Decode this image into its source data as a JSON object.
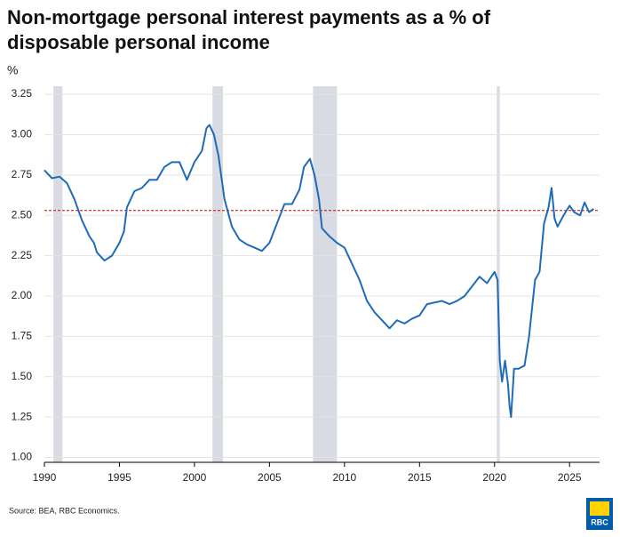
{
  "chart_data": {
    "type": "line",
    "title": "Non-mortgage personal interest payments as a % of disposable personal income",
    "y_unit": "%",
    "source": "Source: BEA, RBC Economics.",
    "logo_text": "RBC",
    "xlim": [
      1990,
      2027
    ],
    "xticks": [
      1990,
      1995,
      2000,
      2005,
      2010,
      2015,
      2020,
      2025
    ],
    "ylim": [
      0.97,
      3.3
    ],
    "yticks": [
      {
        "value": 1,
        "label": "1.00"
      },
      1.25,
      {
        "value": 1.5,
        "label": "1.50"
      },
      1.75,
      {
        "value": 2,
        "label": "2.00"
      },
      2.25,
      {
        "value": 2.5,
        "label": "2.50"
      },
      2.75,
      {
        "value": 3,
        "label": "3.00"
      },
      3.25
    ],
    "grid": true,
    "recessions": [
      [
        1990.6,
        1991.2
      ],
      [
        2001.2,
        2001.9
      ],
      [
        2007.9,
        2009.5
      ],
      [
        2020.15,
        2020.35
      ]
    ],
    "recession_color": "#d9dbe3",
    "reference_line": 2.53,
    "reference_color": "#cc0000",
    "x": [
      1990.0,
      1990.5,
      1991.0,
      1991.5,
      1992.0,
      1992.5,
      1993.0,
      1993.3,
      1993.5,
      1994.0,
      1994.5,
      1995.0,
      1995.3,
      1995.5,
      1996.0,
      1996.5,
      1997.0,
      1997.5,
      1998.0,
      1998.5,
      1999.0,
      1999.5,
      2000.0,
      2000.5,
      2000.8,
      2001.0,
      2001.3,
      2001.6,
      2002.0,
      2002.5,
      2003.0,
      2003.5,
      2004.0,
      2004.5,
      2005.0,
      2005.5,
      2006.0,
      2006.5,
      2007.0,
      2007.3,
      2007.7,
      2008.0,
      2008.3,
      2008.5,
      2009.0,
      2009.5,
      2010.0,
      2010.5,
      2011.0,
      2011.5,
      2012.0,
      2012.5,
      2013.0,
      2013.5,
      2014.0,
      2014.5,
      2015.0,
      2015.5,
      2016.0,
      2016.5,
      2017.0,
      2017.5,
      2018.0,
      2018.5,
      2019.0,
      2019.5,
      2020.0,
      2020.2,
      2020.35,
      2020.5,
      2020.7,
      2020.9,
      2021.0,
      2021.1,
      2021.3,
      2021.6,
      2022.0,
      2022.3,
      2022.7,
      2023.0,
      2023.3,
      2023.6,
      2023.8,
      2024.0,
      2024.2,
      2024.6,
      2025.0,
      2025.3,
      2025.7,
      2026.0,
      2026.3,
      2026.6
    ],
    "series": [
      {
        "name": "Interest payments",
        "color": "#1f6bb8",
        "values": [
          2.78,
          2.73,
          2.74,
          2.7,
          2.6,
          2.47,
          2.37,
          2.33,
          2.27,
          2.22,
          2.25,
          2.33,
          2.4,
          2.55,
          2.65,
          2.67,
          2.72,
          2.72,
          2.8,
          2.83,
          2.83,
          2.72,
          2.83,
          2.9,
          3.04,
          3.06,
          3.0,
          2.87,
          2.6,
          2.43,
          2.35,
          2.32,
          2.3,
          2.28,
          2.33,
          2.45,
          2.57,
          2.57,
          2.66,
          2.8,
          2.85,
          2.75,
          2.6,
          2.42,
          2.37,
          2.33,
          2.3,
          2.2,
          2.1,
          1.97,
          1.9,
          1.85,
          1.8,
          1.85,
          1.83,
          1.86,
          1.88,
          1.95,
          1.96,
          1.97,
          1.95,
          1.97,
          2.0,
          2.06,
          2.12,
          2.08,
          2.15,
          2.1,
          1.6,
          1.47,
          1.6,
          1.45,
          1.32,
          1.25,
          1.55,
          1.55,
          1.57,
          1.75,
          2.1,
          2.15,
          2.45,
          2.55,
          2.67,
          2.48,
          2.43,
          2.5,
          2.56,
          2.52,
          2.5,
          2.58,
          2.52,
          2.54
        ]
      }
    ]
  }
}
